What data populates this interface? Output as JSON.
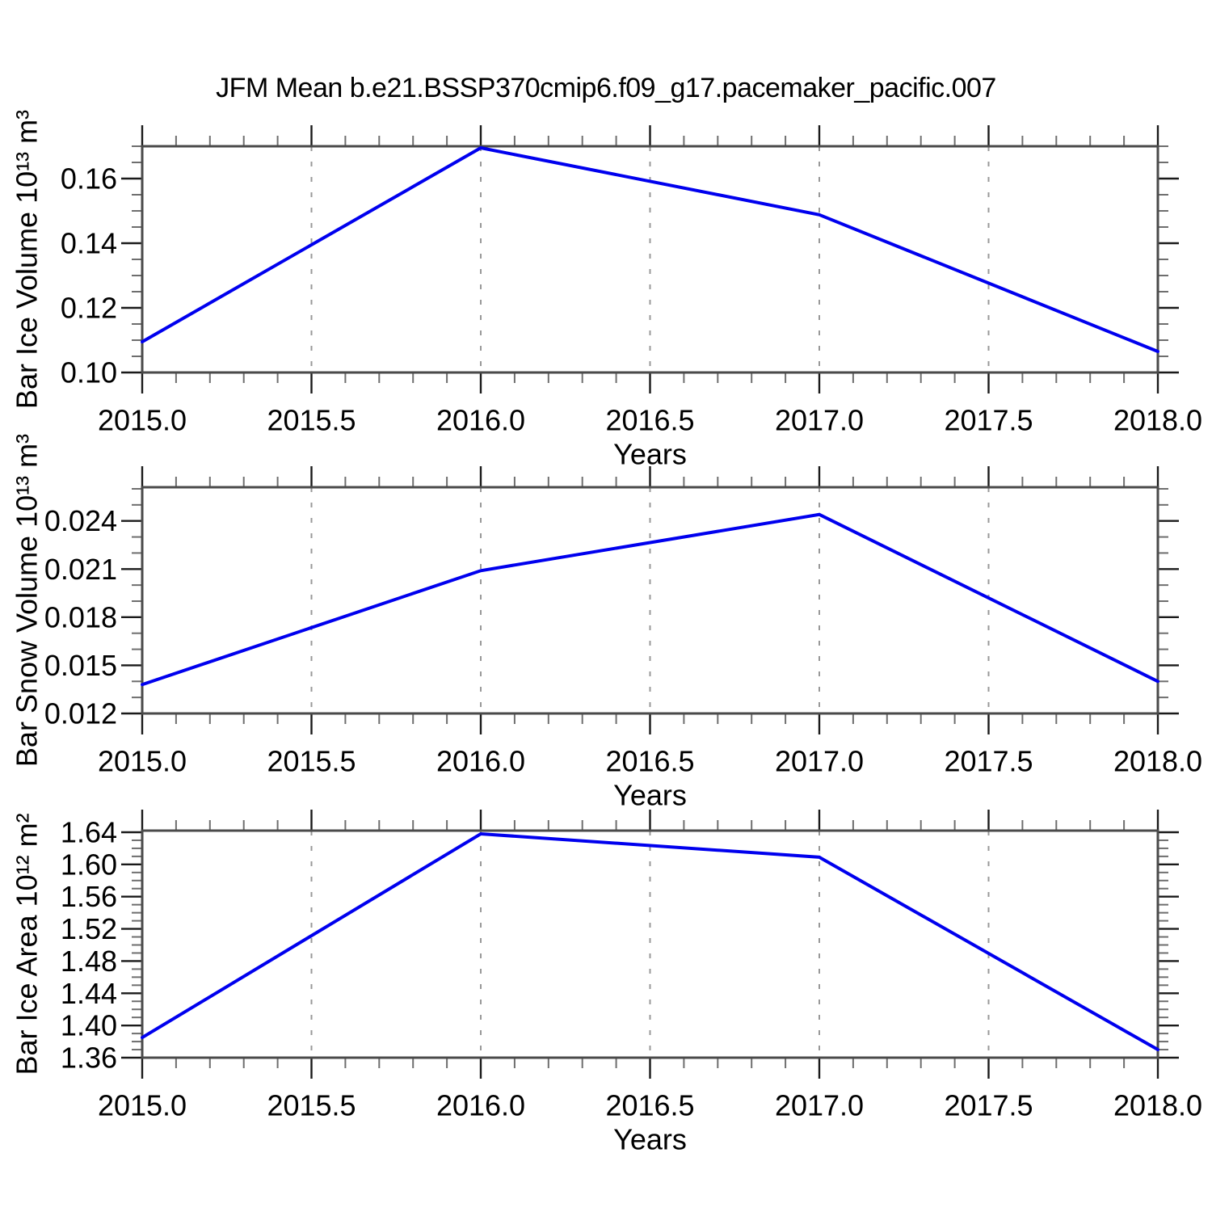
{
  "figure": {
    "title": "JFM Mean b.e21.BSSP370cmip6.f09_g17.pacemaker_pacific.007"
  },
  "colors": {
    "background": "#ffffff",
    "line": "#0000ee",
    "frame": "#4a4a4a",
    "tick_major": "#1a1a1a",
    "tick_minor": "#6e6e6e",
    "grid": "#999999",
    "text": "#000000"
  },
  "chart_data": [
    {
      "type": "line",
      "title": "",
      "ylabel": "Bar Ice Volume 10¹³ m³",
      "xlabel": "Years",
      "x": [
        2015,
        2016,
        2017,
        2018
      ],
      "values": [
        0.1095,
        0.1695,
        0.1488,
        0.1065
      ],
      "xlim": [
        2015,
        2018
      ],
      "ylim": [
        0.1,
        0.17
      ],
      "x_major_ticks": [
        2015.0,
        2015.5,
        2016.0,
        2016.5,
        2017.0,
        2017.5,
        2018.0
      ],
      "x_tick_labels": [
        "2015.0",
        "2015.5",
        "2016.0",
        "2016.5",
        "2017.0",
        "2017.5",
        "2018.0"
      ],
      "x_minor_step": 0.1,
      "y_major_ticks": [
        0.1,
        0.12,
        0.14,
        0.16
      ],
      "y_tick_labels": [
        "0.10",
        "0.12",
        "0.14",
        "0.16"
      ],
      "y_minor_step": 0.005,
      "grid_x": [
        2015.5,
        2016.0,
        2016.5,
        2017.0,
        2017.5
      ],
      "grid_style": "dashed",
      "legend": "none"
    },
    {
      "type": "line",
      "title": "",
      "ylabel": "Bar Snow Volume 10¹³ m³",
      "xlabel": "Years",
      "x": [
        2015,
        2016,
        2017,
        2018
      ],
      "values": [
        0.0138,
        0.0209,
        0.0244,
        0.014
      ],
      "xlim": [
        2015,
        2018
      ],
      "ylim": [
        0.012,
        0.0261
      ],
      "x_major_ticks": [
        2015.0,
        2015.5,
        2016.0,
        2016.5,
        2017.0,
        2017.5,
        2018.0
      ],
      "x_tick_labels": [
        "2015.0",
        "2015.5",
        "2016.0",
        "2016.5",
        "2017.0",
        "2017.5",
        "2018.0"
      ],
      "x_minor_step": 0.1,
      "y_major_ticks": [
        0.012,
        0.015,
        0.018,
        0.021,
        0.024
      ],
      "y_tick_labels": [
        "0.012",
        "0.015",
        "0.018",
        "0.021",
        "0.024"
      ],
      "y_minor_step": 0.001,
      "grid_x": [
        2015.5,
        2016.0,
        2016.5,
        2017.0,
        2017.5
      ],
      "grid_style": "dashed",
      "legend": "none"
    },
    {
      "type": "line",
      "title": "",
      "ylabel": "Bar Ice Area 10¹² m²",
      "xlabel": "Years",
      "x": [
        2015,
        2016,
        2017,
        2018
      ],
      "values": [
        1.385,
        1.638,
        1.609,
        1.37
      ],
      "xlim": [
        2015,
        2018
      ],
      "ylim": [
        1.36,
        1.642
      ],
      "x_major_ticks": [
        2015.0,
        2015.5,
        2016.0,
        2016.5,
        2017.0,
        2017.5,
        2018.0
      ],
      "x_tick_labels": [
        "2015.0",
        "2015.5",
        "2016.0",
        "2016.5",
        "2017.0",
        "2017.5",
        "2018.0"
      ],
      "x_minor_step": 0.1,
      "y_major_ticks": [
        1.36,
        1.4,
        1.44,
        1.48,
        1.52,
        1.56,
        1.6,
        1.64
      ],
      "y_tick_labels": [
        "1.36",
        "1.40",
        "1.44",
        "1.48",
        "1.52",
        "1.56",
        "1.60",
        "1.64"
      ],
      "y_minor_step": 0.01,
      "grid_x": [
        2015.5,
        2016.0,
        2016.5,
        2017.0,
        2017.5
      ],
      "grid_style": "dashed",
      "legend": "none"
    }
  ]
}
